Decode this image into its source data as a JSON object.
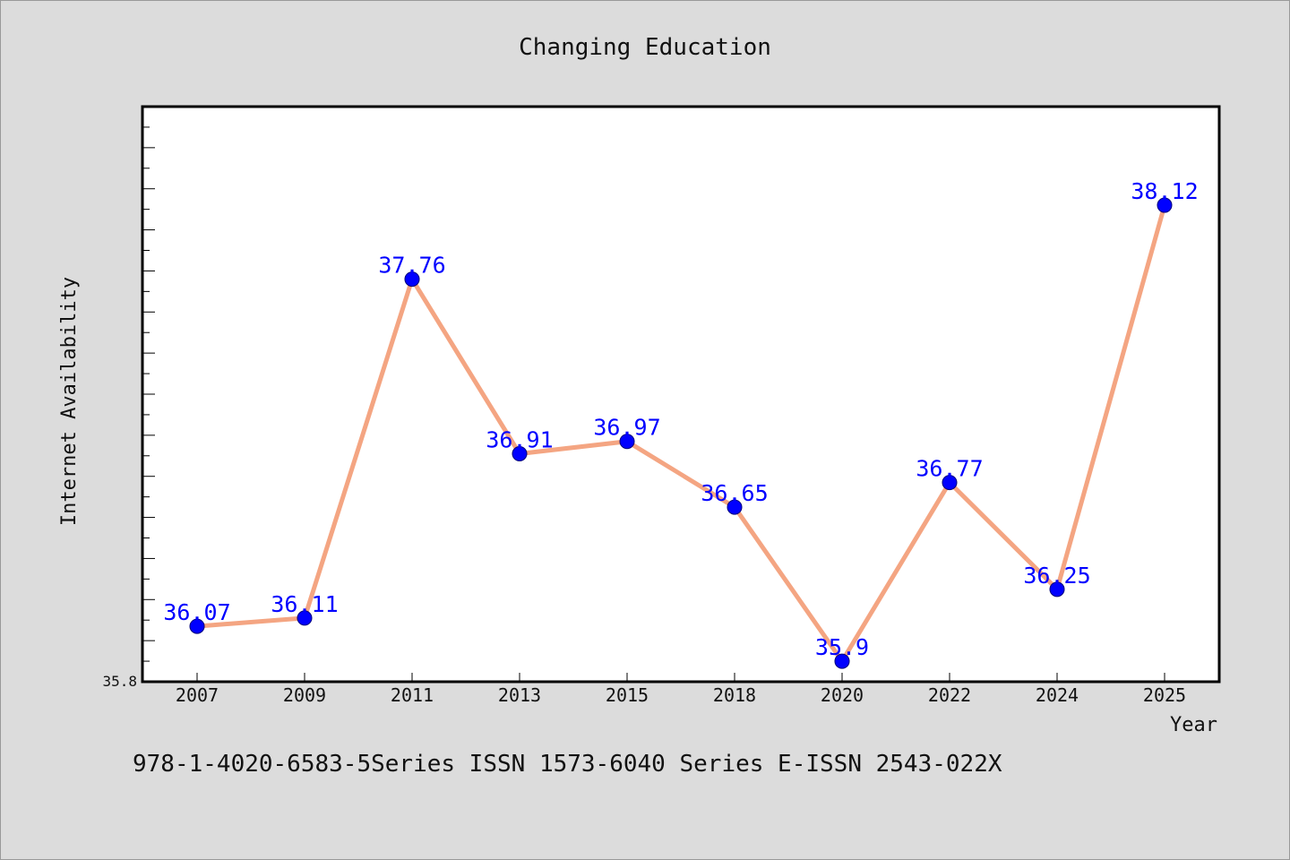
{
  "chart_data": {
    "type": "line",
    "title": "Changing Education",
    "xlabel": "Year",
    "ylabel": "Internet Availability",
    "categories": [
      "2007",
      "2009",
      "2011",
      "2013",
      "2015",
      "2018",
      "2020",
      "2022",
      "2024",
      "2025"
    ],
    "series": [
      {
        "values": [
          36.07,
          36.11,
          37.76,
          36.91,
          36.97,
          36.65,
          35.9,
          36.77,
          36.25,
          38.12
        ],
        "data_labels": [
          "36.07",
          "36.11",
          "37.76",
          "36.91",
          "36.97",
          "36.65",
          "35.9",
          "36.77",
          "36.25",
          "38.12"
        ],
        "line_color": "#f4a582",
        "marker_color": "#0000ff",
        "label_color": "#0000ff"
      }
    ],
    "ylim": [
      35.8,
      38.6
    ],
    "y_min_label": "35.8",
    "grid": false,
    "legend": "none"
  },
  "footer": {
    "text": "978-1-4020-6583-5Series ISSN 1573-6040 Series E-ISSN 2543-022X"
  },
  "colors": {
    "background": "#dcdcdc",
    "plot_background": "#ffffff",
    "axis": "#000000"
  }
}
